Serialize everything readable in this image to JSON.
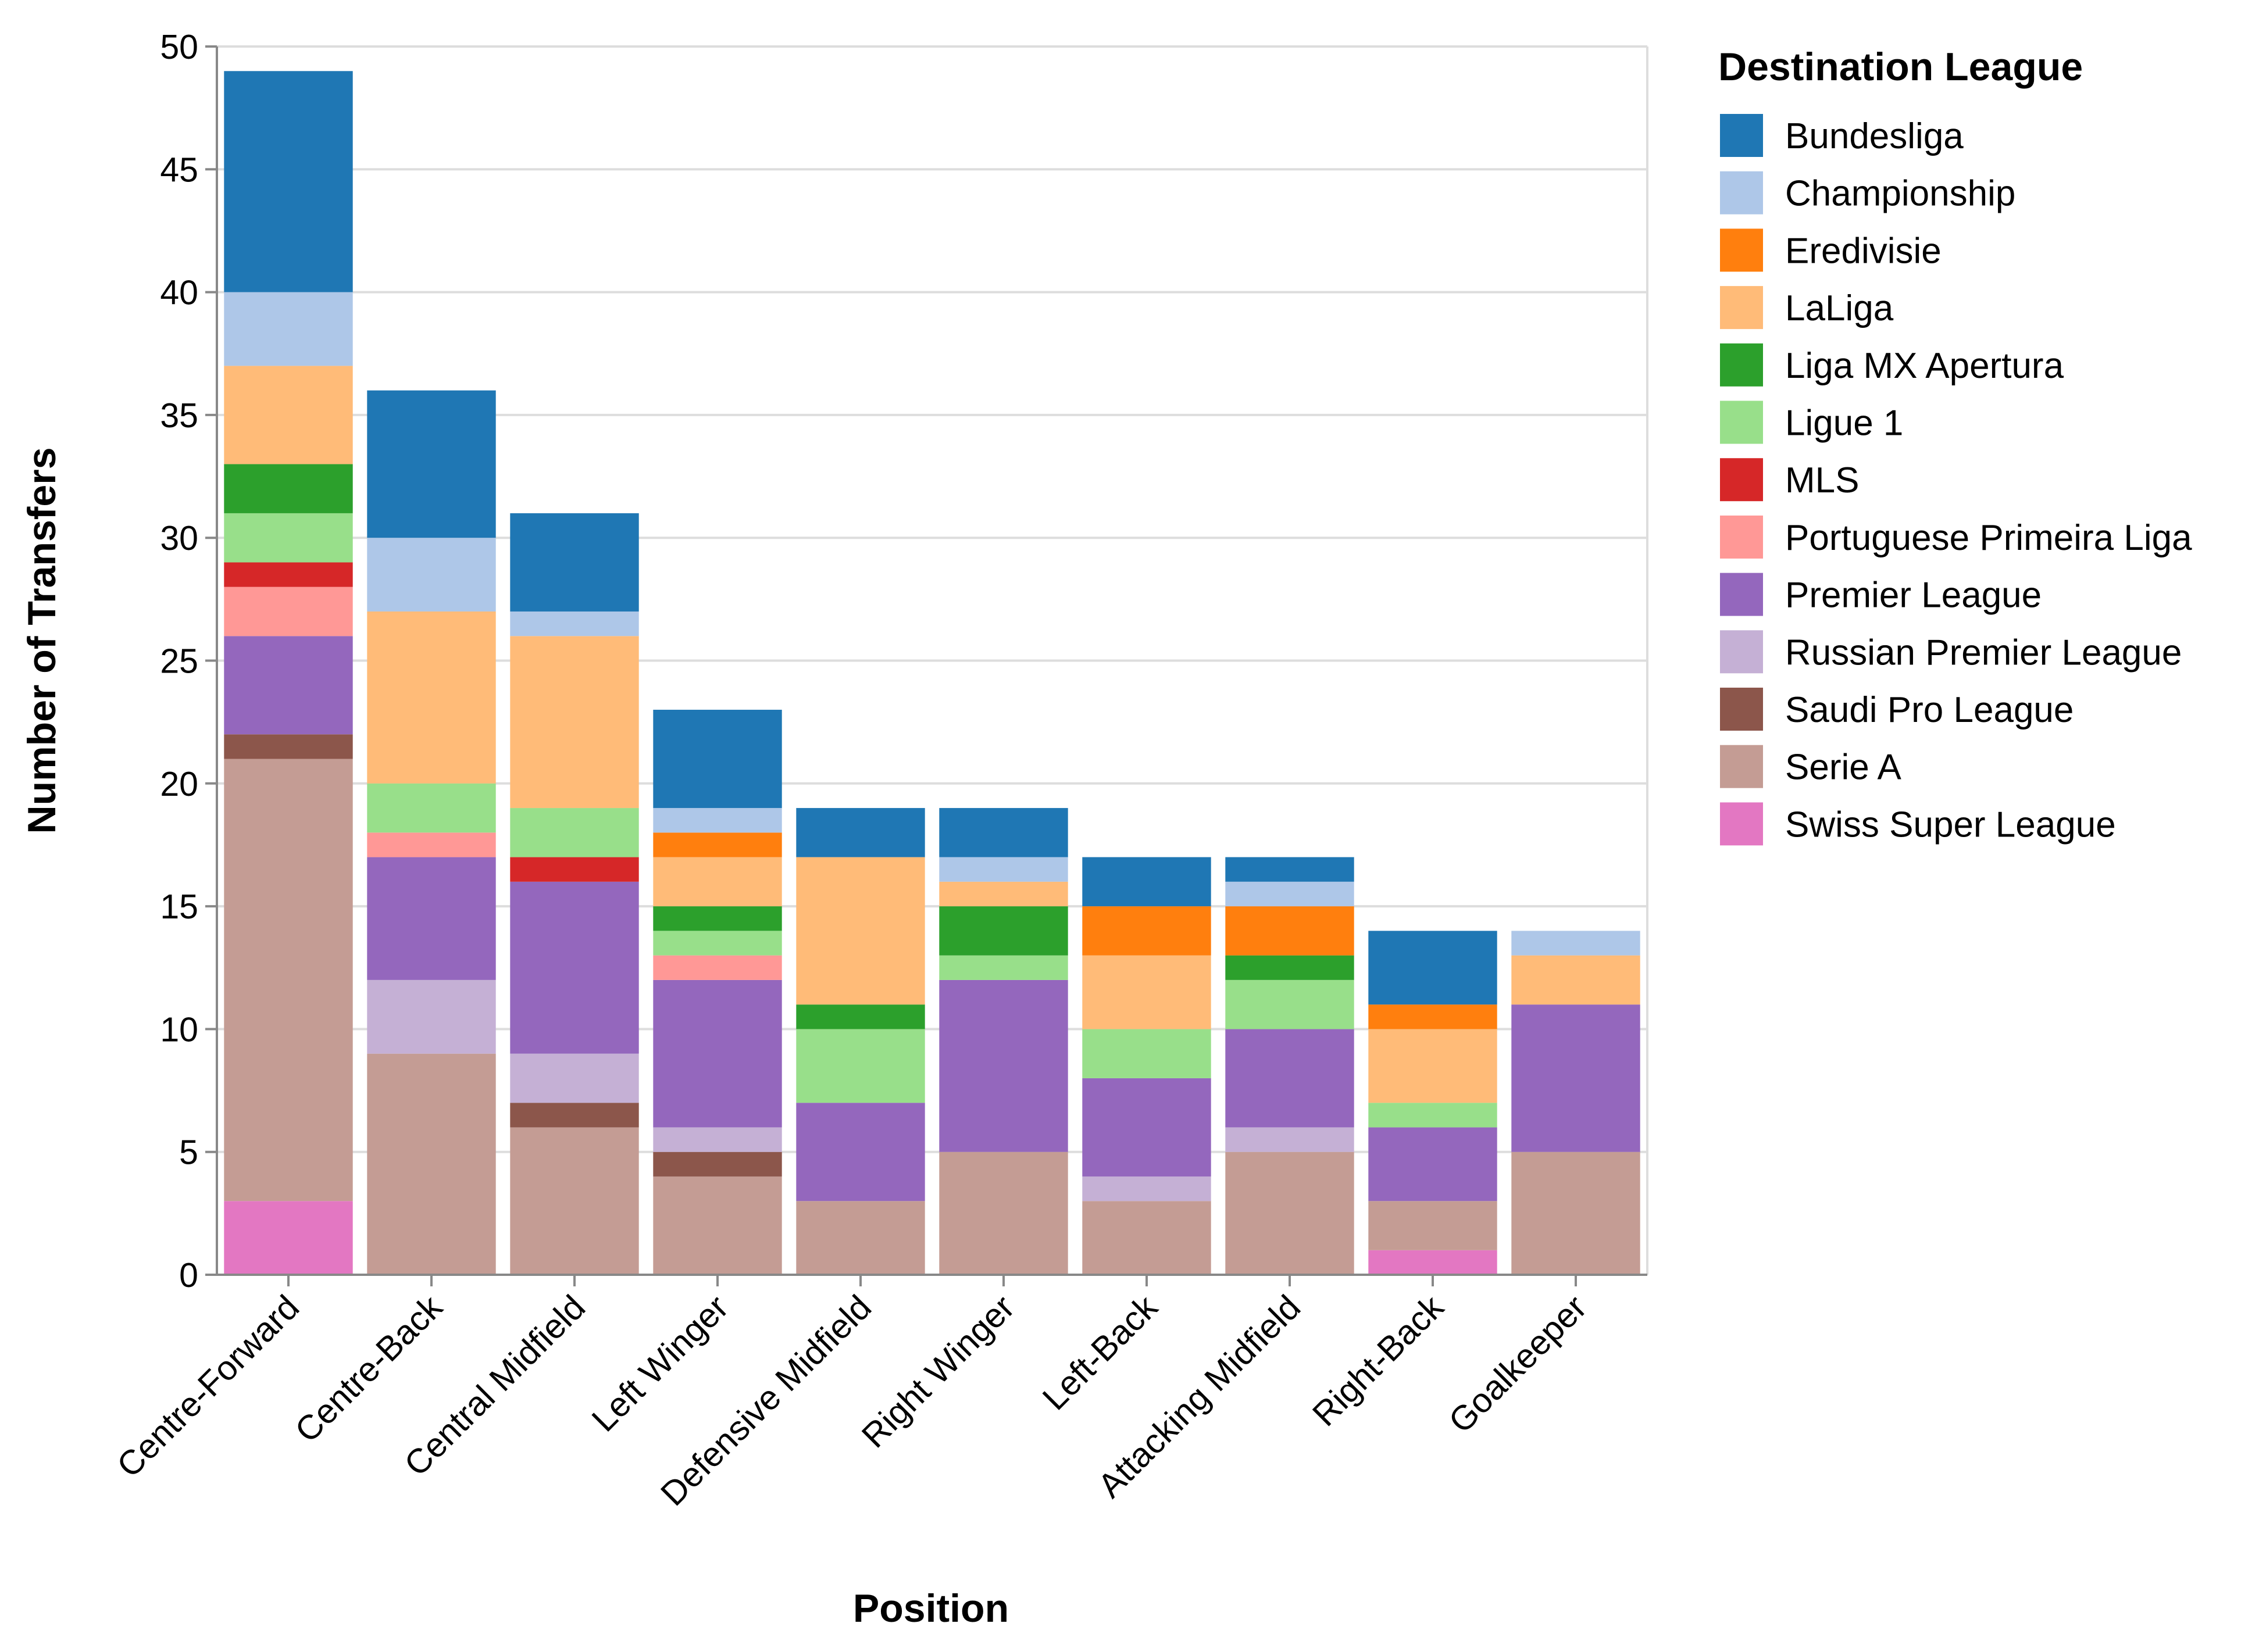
{
  "chart_data": {
    "type": "bar",
    "stacked": true,
    "xlabel": "Position",
    "ylabel": "Number of Transfers",
    "ylim": [
      0,
      50
    ],
    "yticks": [
      0,
      5,
      10,
      15,
      20,
      25,
      30,
      35,
      40,
      45,
      50
    ],
    "grid": true,
    "legend_title": "Destination League",
    "legend_position": "right",
    "categories": [
      "Centre-Forward",
      "Centre-Back",
      "Central Midfield",
      "Left Winger",
      "Defensive Midfield",
      "Right Winger",
      "Left-Back",
      "Attacking Midfield",
      "Right-Back",
      "Goalkeeper"
    ],
    "series": [
      {
        "name": "Swiss Super League",
        "color": "#e377c2",
        "values": [
          3,
          0,
          0,
          0,
          0,
          0,
          0,
          0,
          1,
          0
        ]
      },
      {
        "name": "Serie A",
        "color": "#c49c94",
        "values": [
          18,
          9,
          6,
          4,
          3,
          5,
          3,
          5,
          2,
          5
        ]
      },
      {
        "name": "Saudi Pro League",
        "color": "#8c564b",
        "values": [
          1,
          0,
          1,
          1,
          0,
          0,
          0,
          0,
          0,
          0
        ]
      },
      {
        "name": "Russian Premier League",
        "color": "#c5b0d5",
        "values": [
          0,
          3,
          2,
          1,
          0,
          0,
          1,
          1,
          0,
          0
        ]
      },
      {
        "name": "Premier League",
        "color": "#9467bd",
        "values": [
          4,
          5,
          7,
          6,
          4,
          7,
          4,
          4,
          3,
          6
        ]
      },
      {
        "name": "Portuguese Primeira Liga",
        "color": "#ff9896",
        "values": [
          2,
          1,
          0,
          1,
          0,
          0,
          0,
          0,
          0,
          0
        ]
      },
      {
        "name": "MLS",
        "color": "#d62728",
        "values": [
          1,
          0,
          1,
          0,
          0,
          0,
          0,
          0,
          0,
          0
        ]
      },
      {
        "name": "Ligue 1",
        "color": "#98df8a",
        "values": [
          2,
          2,
          2,
          1,
          3,
          1,
          2,
          2,
          1,
          0
        ]
      },
      {
        "name": "Liga MX Apertura",
        "color": "#2ca02c",
        "values": [
          2,
          0,
          0,
          1,
          1,
          2,
          0,
          1,
          0,
          0
        ]
      },
      {
        "name": "LaLiga",
        "color": "#ffbb78",
        "values": [
          4,
          7,
          7,
          2,
          6,
          1,
          3,
          0,
          3,
          2
        ]
      },
      {
        "name": "Eredivisie",
        "color": "#ff7f0e",
        "values": [
          0,
          0,
          0,
          1,
          0,
          0,
          2,
          2,
          1,
          0
        ]
      },
      {
        "name": "Championship",
        "color": "#aec7e8",
        "values": [
          3,
          3,
          1,
          1,
          0,
          1,
          0,
          1,
          0,
          1
        ]
      },
      {
        "name": "Bundesliga",
        "color": "#1f77b4",
        "values": [
          9,
          6,
          4,
          4,
          2,
          2,
          2,
          1,
          3,
          0
        ]
      }
    ],
    "legend_order": [
      "Bundesliga",
      "Championship",
      "Eredivisie",
      "LaLiga",
      "Liga MX Apertura",
      "Ligue 1",
      "MLS",
      "Portuguese Primeira Liga",
      "Premier League",
      "Russian Premier League",
      "Saudi Pro League",
      "Serie A",
      "Swiss Super League"
    ]
  }
}
